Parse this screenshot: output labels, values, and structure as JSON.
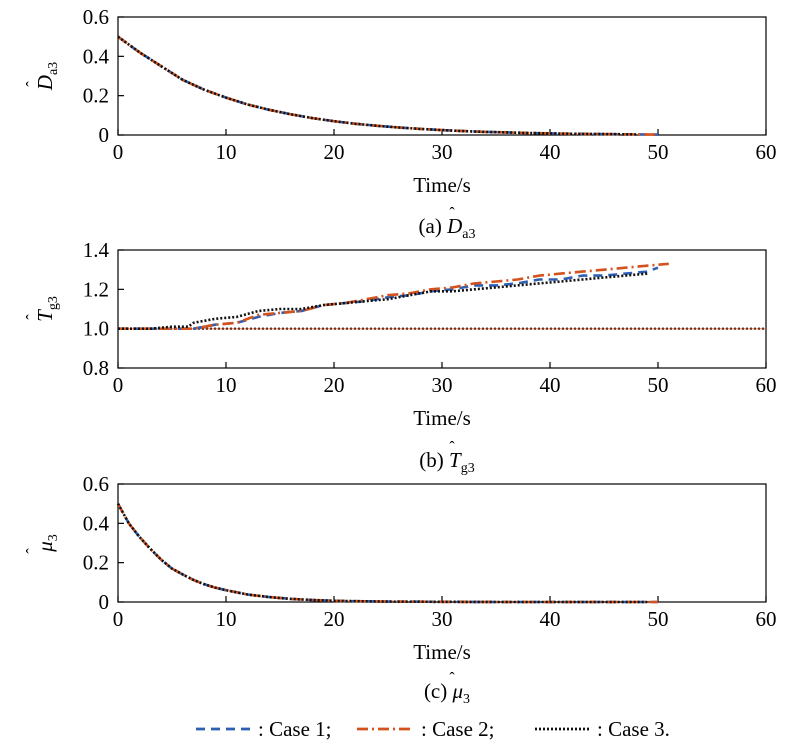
{
  "chart_data": [
    {
      "type": "line",
      "id": "a",
      "caption": {
        "prefix": "(a) ",
        "symbol": "D",
        "hat": "ˆ",
        "subscript": "a3"
      },
      "ylabel": {
        "symbol": "D",
        "hat": "ˆ",
        "subscript": "a3"
      },
      "xlabel": "Time/s",
      "xlim": [
        0,
        60
      ],
      "ylim": [
        0,
        0.6
      ],
      "xticks": [
        "0",
        "10",
        "20",
        "30",
        "40",
        "50",
        "60"
      ],
      "yticks": [
        "0",
        "0.2",
        "0.4",
        "0.6"
      ],
      "series": [
        {
          "name": "Case 1",
          "x": [
            0,
            2,
            4,
            6,
            8,
            10,
            12,
            14,
            16,
            18,
            20,
            22,
            24,
            26,
            28,
            30,
            32,
            34,
            36,
            38,
            40,
            42,
            44,
            46,
            48,
            50
          ],
          "values": [
            0.5,
            0.42,
            0.35,
            0.28,
            0.23,
            0.19,
            0.155,
            0.128,
            0.105,
            0.086,
            0.07,
            0.057,
            0.047,
            0.038,
            0.031,
            0.025,
            0.02,
            0.016,
            0.013,
            0.01,
            0.008,
            0.006,
            0.005,
            0.004,
            0.003,
            0.002
          ]
        },
        {
          "name": "Case 2",
          "x": [
            0,
            2,
            4,
            6,
            8,
            10,
            12,
            14,
            16,
            18,
            20,
            22,
            24,
            26,
            28,
            30,
            32,
            34,
            36,
            38,
            40,
            42,
            44,
            46,
            48,
            50
          ],
          "values": [
            0.5,
            0.42,
            0.35,
            0.28,
            0.23,
            0.19,
            0.155,
            0.128,
            0.105,
            0.086,
            0.07,
            0.057,
            0.047,
            0.038,
            0.031,
            0.025,
            0.02,
            0.016,
            0.013,
            0.01,
            0.008,
            0.006,
            0.005,
            0.004,
            0.003,
            0.002
          ]
        },
        {
          "name": "Case 3",
          "x": [
            0,
            2,
            4,
            6,
            8,
            10,
            12,
            14,
            16,
            18,
            20,
            22,
            24,
            26,
            28,
            30,
            32,
            34,
            36,
            38,
            40,
            42,
            44,
            46,
            48
          ],
          "values": [
            0.5,
            0.42,
            0.35,
            0.28,
            0.23,
            0.19,
            0.155,
            0.128,
            0.105,
            0.086,
            0.07,
            0.057,
            0.047,
            0.038,
            0.031,
            0.025,
            0.02,
            0.016,
            0.013,
            0.01,
            0.008,
            0.006,
            0.005,
            0.004,
            0.003
          ]
        }
      ]
    },
    {
      "type": "line",
      "id": "b",
      "caption": {
        "prefix": "(b) ",
        "symbol": "T",
        "hat": "ˆ",
        "subscript": "g3"
      },
      "ylabel": {
        "symbol": "T",
        "hat": "ˆ",
        "subscript": "g3"
      },
      "xlabel": "Time/s",
      "xlim": [
        0,
        60
      ],
      "ylim": [
        0.8,
        1.4
      ],
      "xticks": [
        "0",
        "10",
        "20",
        "30",
        "40",
        "50",
        "60"
      ],
      "yticks": [
        "0.8",
        "1.0",
        "1.2",
        "1.4"
      ],
      "baseline": {
        "y": 1.0,
        "x": [
          0,
          60
        ]
      },
      "series": [
        {
          "name": "Case 1",
          "x": [
            0,
            7,
            9,
            11,
            13,
            15,
            17,
            19,
            21,
            23,
            25,
            27,
            29,
            31,
            33,
            35,
            37,
            39,
            41,
            43,
            45,
            47,
            49,
            50
          ],
          "values": [
            1.0,
            1.0,
            1.02,
            1.03,
            1.06,
            1.08,
            1.09,
            1.12,
            1.13,
            1.14,
            1.16,
            1.17,
            1.19,
            1.2,
            1.22,
            1.22,
            1.23,
            1.25,
            1.25,
            1.27,
            1.27,
            1.28,
            1.29,
            1.31
          ]
        },
        {
          "name": "Case 2",
          "x": [
            0,
            7,
            9,
            11,
            13,
            15,
            17,
            19,
            21,
            23,
            25,
            27,
            29,
            31,
            33,
            35,
            37,
            39,
            41,
            43,
            45,
            47,
            49,
            51
          ],
          "values": [
            1.0,
            1.0,
            1.02,
            1.03,
            1.07,
            1.08,
            1.09,
            1.12,
            1.13,
            1.15,
            1.17,
            1.18,
            1.2,
            1.21,
            1.23,
            1.24,
            1.25,
            1.27,
            1.28,
            1.29,
            1.3,
            1.31,
            1.32,
            1.33
          ]
        },
        {
          "name": "Case 3",
          "x": [
            0,
            3,
            5,
            6.5,
            7,
            9,
            11,
            13,
            15,
            17,
            19,
            21,
            23,
            25,
            27,
            29,
            31,
            33,
            35,
            37,
            39,
            41,
            43,
            45,
            47,
            49
          ],
          "values": [
            1.0,
            1.0,
            1.01,
            1.01,
            1.03,
            1.05,
            1.06,
            1.09,
            1.1,
            1.1,
            1.12,
            1.13,
            1.14,
            1.15,
            1.17,
            1.19,
            1.19,
            1.2,
            1.21,
            1.22,
            1.23,
            1.24,
            1.25,
            1.26,
            1.27,
            1.28
          ]
        }
      ]
    },
    {
      "type": "line",
      "id": "c",
      "caption": {
        "prefix": "(c) ",
        "symbol": "μ",
        "hat": "ˆ",
        "subscript": "3"
      },
      "ylabel": {
        "symbol": "μ",
        "hat": "ˆ",
        "subscript": "3"
      },
      "xlabel": "Time/s",
      "xlim": [
        0,
        60
      ],
      "ylim": [
        0,
        0.6
      ],
      "xticks": [
        "0",
        "10",
        "20",
        "30",
        "40",
        "50",
        "60"
      ],
      "yticks": [
        "0",
        "0.2",
        "0.4",
        "0.6"
      ],
      "series": [
        {
          "name": "Case 1",
          "x": [
            0,
            1,
            2,
            3,
            4,
            5,
            6,
            7,
            8,
            9,
            10,
            12,
            14,
            16,
            18,
            20,
            22,
            25,
            30,
            35,
            40,
            45,
            50
          ],
          "values": [
            0.5,
            0.4,
            0.33,
            0.27,
            0.215,
            0.17,
            0.14,
            0.112,
            0.09,
            0.073,
            0.06,
            0.038,
            0.025,
            0.016,
            0.01,
            0.006,
            0.004,
            0.002,
            0.001,
            0.0,
            0.0,
            0.0,
            0.0
          ]
        },
        {
          "name": "Case 2",
          "x": [
            0,
            1,
            2,
            3,
            4,
            5,
            6,
            7,
            8,
            9,
            10,
            12,
            14,
            16,
            18,
            20,
            22,
            25,
            30,
            35,
            40,
            45,
            50
          ],
          "values": [
            0.5,
            0.4,
            0.33,
            0.27,
            0.215,
            0.17,
            0.14,
            0.112,
            0.09,
            0.073,
            0.06,
            0.038,
            0.025,
            0.016,
            0.01,
            0.006,
            0.004,
            0.002,
            0.001,
            0.0,
            0.0,
            0.0,
            0.0
          ]
        },
        {
          "name": "Case 3",
          "x": [
            0,
            1,
            2,
            3,
            4,
            5,
            6,
            7,
            8,
            9,
            10,
            12,
            14,
            16,
            18,
            20,
            22,
            25,
            30,
            35,
            40,
            45,
            49
          ],
          "values": [
            0.5,
            0.4,
            0.33,
            0.27,
            0.215,
            0.17,
            0.14,
            0.112,
            0.09,
            0.073,
            0.06,
            0.038,
            0.025,
            0.016,
            0.01,
            0.006,
            0.004,
            0.002,
            0.001,
            0.0,
            0.0,
            0.0,
            0.0
          ]
        }
      ]
    }
  ],
  "legend": {
    "placement": "bottom-center",
    "items": [
      {
        "label": ": Case 1;",
        "color": "#2f5fb3",
        "style": "dashed"
      },
      {
        "label": ": Case 2;",
        "color": "#d4521e",
        "style": "dash-dot"
      },
      {
        "label": ": Case 3.",
        "color": "#111111",
        "style": "dotted"
      }
    ]
  },
  "style": {
    "series_colors": [
      "#2f5fb3",
      "#d4521e",
      "#111111"
    ]
  }
}
